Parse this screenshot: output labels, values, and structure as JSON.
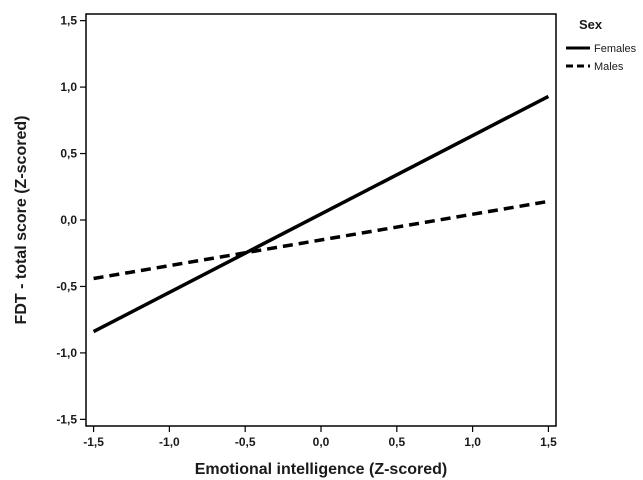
{
  "chart_data": {
    "type": "line",
    "xlabel": "Emotional intelligence (Z-scored)",
    "ylabel": "FDT - total score (Z-scored)",
    "xlim": [
      -1.55,
      1.55
    ],
    "ylim": [
      -1.55,
      1.55
    ],
    "x_ticks": [
      -1.5,
      -1.0,
      -0.5,
      0.0,
      0.5,
      1.0,
      1.5
    ],
    "y_ticks": [
      -1.5,
      -1.0,
      -0.5,
      0.0,
      0.5,
      1.0,
      1.5
    ],
    "x_tick_labels": [
      "-1,5",
      "-1,0",
      "-0,5",
      "0,0",
      "0,5",
      "1,0",
      "1,5"
    ],
    "y_tick_labels": [
      "-1,5",
      "-1,0",
      "-0,5",
      "0,0",
      "0,5",
      "1,0",
      "1,5"
    ],
    "grid": false,
    "legend": {
      "title": "Sex",
      "placement": "outside-top-right"
    },
    "series": [
      {
        "name": "Females",
        "style": "solid",
        "color": "#000000",
        "x": [
          -1.5,
          1.5
        ],
        "y": [
          -0.84,
          0.93
        ]
      },
      {
        "name": "Males",
        "style": "dashed",
        "color": "#000000",
        "x": [
          -1.5,
          1.5
        ],
        "y": [
          -0.44,
          0.14
        ]
      }
    ]
  }
}
